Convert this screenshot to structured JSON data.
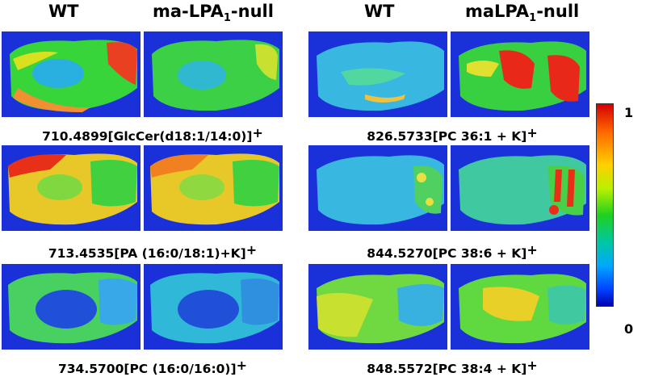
{
  "headers": {
    "left_wt": "WT",
    "left_null": "ma-LPA",
    "left_null_sub": "1",
    "left_null_tail": "-null",
    "right_wt": "WT",
    "right_null": "maLPA",
    "right_null_sub": "1",
    "right_null_tail": "-null"
  },
  "captions": {
    "c1": "710.4899[GlcCer(d18:1/14:0)]",
    "c2": "826.5733[PC 36:1 + K]",
    "c3": "713.4535[PA (16:0/18:1)+K]",
    "c4": "844.5270[PC 38:6 + K]",
    "c5": "734.5700[PC (16:0/16:0)]",
    "c6": "848.5572[PC 38:4 + K]",
    "sign": "+"
  },
  "colorbar": {
    "max_label": "1",
    "min_label": "0",
    "colors": [
      "#d40000",
      "#ffd000",
      "#20d020",
      "#00a8ff",
      "#0000b0"
    ]
  }
}
